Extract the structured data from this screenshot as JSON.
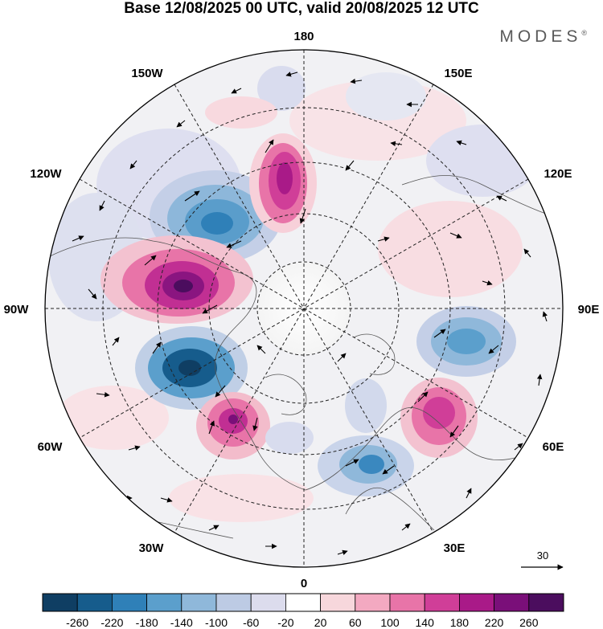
{
  "title": "Base 12/08/2025 00 UTC, valid 20/08/2025 12 UTC",
  "brand": "MODES",
  "brand_mark": "®",
  "longitude_labels": {
    "top": "180",
    "top_left": "150W",
    "top_right": "150E",
    "upper_left": "120W",
    "upper_right": "120E",
    "left": "90W",
    "right": "90E",
    "lower_left": "60W",
    "lower_right": "60E",
    "bottom_left": "30W",
    "bottom_right": "30E",
    "bottom": "0"
  },
  "reference_vector": {
    "label": "30",
    "icon": "arrow-right-icon"
  },
  "colorbar": {
    "labels": [
      "-260",
      "-220",
      "-180",
      "-140",
      "-100",
      "-60",
      "-20",
      "20",
      "60",
      "100",
      "140",
      "180",
      "220",
      "260"
    ],
    "colors": [
      "#0f3e63",
      "#165c8c",
      "#2f80b8",
      "#5b9fcc",
      "#8fb8da",
      "#bdcbe4",
      "#dcdced",
      "#ffffff",
      "#f7d7dc",
      "#f3a9c1",
      "#e874a8",
      "#d03e98",
      "#a91a88",
      "#7a0f79",
      "#4b0d5e"
    ]
  }
}
